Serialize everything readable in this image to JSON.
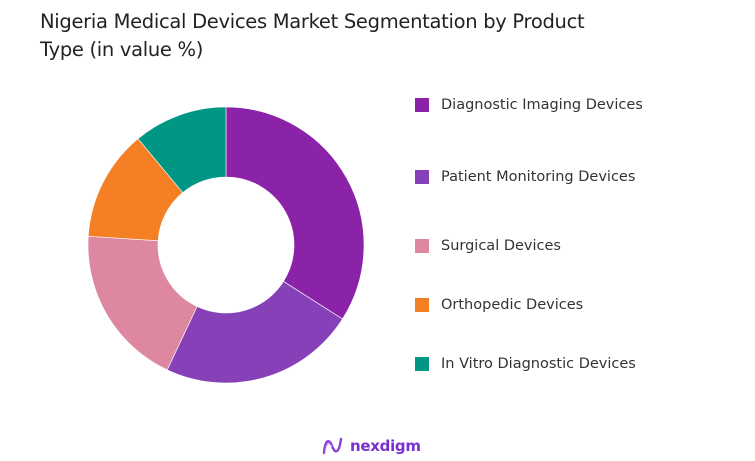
{
  "chart_data": {
    "type": "pie",
    "subtype": "donut",
    "title": "Nigeria Medical Devices Market Segmentation by Product Type (in value %)",
    "categories": [
      "Diagnostic Imaging Devices",
      "Patient Monitoring Devices",
      "Surgical Devices",
      "Orthopedic Devices",
      "In Vitro Diagnostic Devices"
    ],
    "values": [
      34,
      23,
      19,
      13,
      11
    ],
    "colors": [
      "#8b23a8",
      "#8741b8",
      "#dd88a0",
      "#f57f24",
      "#009684"
    ],
    "legend_position": "right",
    "start_angle": "12 o'clock, clockwise"
  },
  "header": {
    "title_line1": "Nigeria Medical Devices Market Segmentation by Product",
    "title_line2": "Type (in value %)"
  },
  "legend": {
    "items": [
      {
        "label": "Diagnostic Imaging Devices",
        "color": "#8b23a8"
      },
      {
        "label": "Patient Monitoring Devices",
        "color": "#8741b8"
      },
      {
        "label": "Surgical Devices",
        "color": "#dd88a0"
      },
      {
        "label": "Orthopedic Devices",
        "color": "#f57f24"
      },
      {
        "label": "In Vitro Diagnostic Devices",
        "color": "#009684"
      }
    ]
  },
  "footer": {
    "brand_name": "nexdigm",
    "brand_color": "#7a2fd0"
  }
}
